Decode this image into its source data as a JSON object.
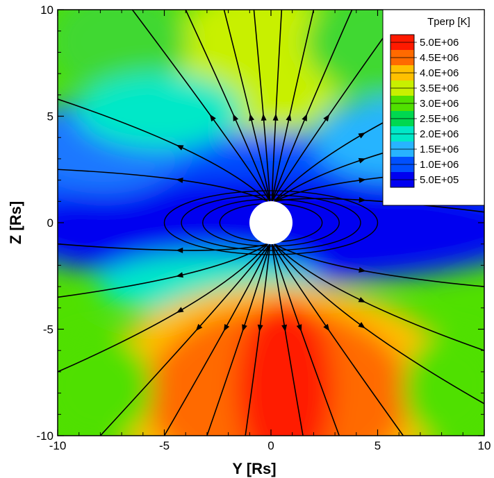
{
  "chart_data": {
    "type": "heatmap",
    "title": "",
    "xlabel": "Y [Rs]",
    "ylabel": "Z [Rs]",
    "xlim": [
      -10,
      10
    ],
    "ylim": [
      -10,
      10
    ],
    "x_ticks": [
      {
        "value": -10,
        "label": "-10"
      },
      {
        "value": -5,
        "label": "-5"
      },
      {
        "value": 0,
        "label": "0"
      },
      {
        "value": 5,
        "label": "5"
      },
      {
        "value": 10,
        "label": "10"
      }
    ],
    "y_ticks": [
      {
        "value": -10,
        "label": "-10"
      },
      {
        "value": -5,
        "label": "-5"
      },
      {
        "value": 0,
        "label": "0"
      },
      {
        "value": 5,
        "label": "5"
      },
      {
        "value": 10,
        "label": "10"
      }
    ],
    "colorbar": {
      "title": "Tperp [K]",
      "placement": "top-right",
      "levels": [
        {
          "label": "5.0E+06",
          "value": 5000000,
          "color": "#ff1a00"
        },
        {
          "label": "4.5E+06",
          "value": 4500000,
          "color": "#ff6a00"
        },
        {
          "label": "4.0E+06",
          "value": 4000000,
          "color": "#ffc000"
        },
        {
          "label": "3.5E+06",
          "value": 3500000,
          "color": "#c8f000"
        },
        {
          "label": "3.0E+06",
          "value": 3000000,
          "color": "#50e000"
        },
        {
          "label": "2.5E+06",
          "value": 2500000,
          "color": "#00d850"
        },
        {
          "label": "2.0E+06",
          "value": 2000000,
          "color": "#00e8c8"
        },
        {
          "label": "1.5E+06",
          "value": 1500000,
          "color": "#28b4ff"
        },
        {
          "label": "1.0E+06",
          "value": 1000000,
          "color": "#0050ff"
        },
        {
          "label": "5.0E+05",
          "value": 500000,
          "color": "#0000f0"
        }
      ]
    },
    "occulter_radius": 1,
    "grid": false
  }
}
